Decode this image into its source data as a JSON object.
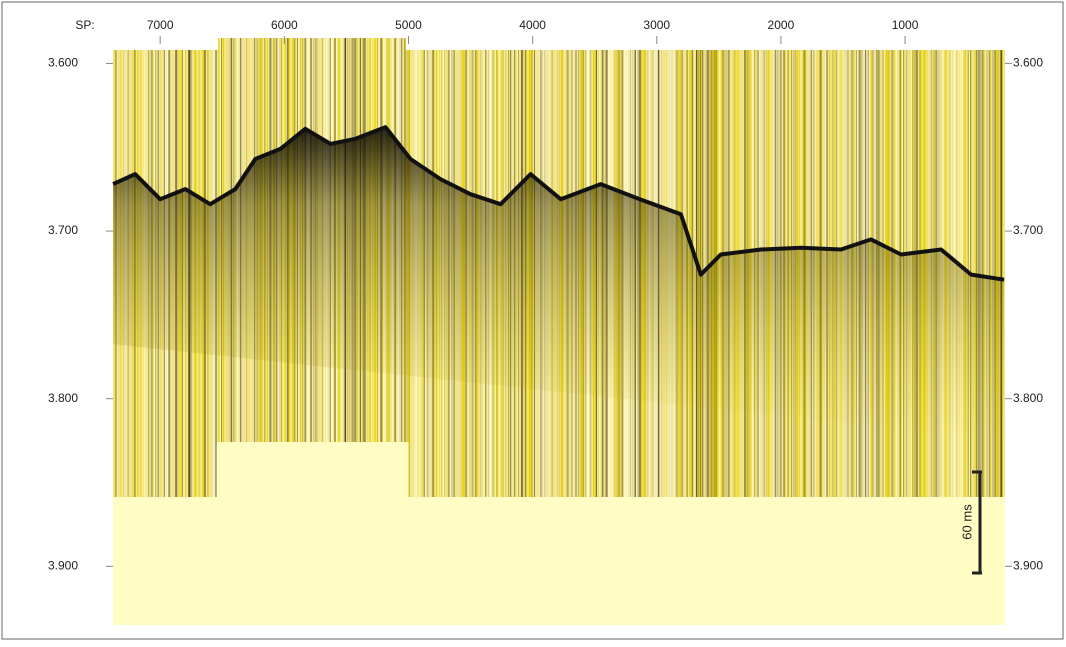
{
  "chart_data": {
    "type": "seismic",
    "x_label": "SP:",
    "xlim": [
      7380,
      195
    ],
    "xticks": [
      7000,
      6000,
      5000,
      4000,
      3000,
      2000,
      1000
    ],
    "ylim": [
      3.592,
      3.935
    ],
    "yticks": [
      {
        "value": 3.6,
        "label": "3.600"
      },
      {
        "value": 3.7,
        "label": "3.700"
      },
      {
        "value": 3.8,
        "label": "3.800"
      },
      {
        "value": 3.9,
        "label": "3.900"
      }
    ],
    "y_inverted": true,
    "scale_bar_label": "60 ms",
    "seafloor": {
      "color": "#111111",
      "x": [
        7379,
        7202,
        7000,
        6798,
        6597,
        6395,
        6234,
        6032,
        5831,
        5629,
        5427,
        5185,
        4984,
        4742,
        4500,
        4258,
        4016,
        3774,
        3452,
        3137,
        2806,
        2645,
        2484,
        2161,
        1839,
        1516,
        1274,
        1032,
        710,
        468,
        202
      ],
      "values": [
        3.672,
        3.666,
        3.681,
        3.675,
        3.684,
        3.675,
        3.657,
        3.651,
        3.639,
        3.648,
        3.645,
        3.638,
        3.657,
        3.669,
        3.678,
        3.684,
        3.666,
        3.681,
        3.672,
        3.681,
        3.69,
        3.726,
        3.714,
        3.711,
        3.71,
        3.711,
        3.705,
        3.714,
        3.711,
        3.726,
        3.729
      ]
    }
  }
}
